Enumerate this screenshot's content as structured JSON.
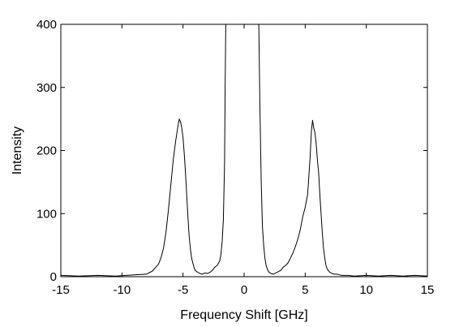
{
  "chart_data": {
    "type": "line",
    "title": "",
    "xlabel": "Frequency Shift [GHz]",
    "ylabel": "Intensity",
    "xlim": [
      -15,
      15
    ],
    "ylim": [
      0,
      400
    ],
    "xticks": [
      -15,
      -10,
      -5,
      0,
      5,
      10,
      15
    ],
    "yticks": [
      0,
      100,
      200,
      300,
      400
    ],
    "xtick_labels": [
      "-15",
      "-10",
      "-5",
      "0",
      "5",
      "10",
      "15"
    ],
    "ytick_labels": [
      "0",
      "100",
      "200",
      "300",
      "400"
    ],
    "grid": false,
    "legend": "none",
    "line_color": "#000000",
    "series": [
      {
        "x": [
          -15,
          -13.5,
          -12,
          -10.5,
          -9,
          -8,
          -7.5,
          -7,
          -6.8,
          -6.6,
          -6.4,
          -6.2,
          -6,
          -5.8,
          -5.6,
          -5.4,
          -5.3,
          -5.2,
          -5.1,
          -5,
          -4.9,
          -4.8,
          -4.7,
          -4.6,
          -4.5,
          -4.4,
          -4.3,
          -4.2,
          -4.1,
          -4,
          -3.8,
          -3.6,
          -3.4,
          -3.2,
          -3,
          -2.8,
          -2.6,
          -2.4,
          -2.2,
          -2,
          -1.9,
          -1.8,
          -1.7,
          -1.6,
          -1.55,
          -1.5,
          -1.45,
          -1.4,
          -1.3,
          -1.2,
          -1.1,
          -1,
          -0.8,
          -0.5,
          0,
          0.5,
          0.8,
          1,
          1.05,
          1.1,
          1.15,
          1.2,
          1.3,
          1.4,
          1.5,
          1.6,
          1.7,
          1.8,
          1.9,
          2,
          2.2,
          2.4,
          2.6,
          2.8,
          3,
          3.2,
          3.4,
          3.6,
          3.8,
          4,
          4.2,
          4.4,
          4.6,
          4.8,
          5,
          5.2,
          5.3,
          5.4,
          5.5,
          5.6,
          5.7,
          5.8,
          5.9,
          6,
          6.1,
          6.2,
          6.3,
          6.4,
          6.5,
          6.6,
          6.7,
          6.8,
          7,
          7.2,
          7.4,
          7.6,
          7.8,
          8,
          8.5,
          9,
          10,
          11,
          12,
          13,
          14,
          15
        ],
        "y": [
          2,
          1,
          2,
          1,
          3,
          4,
          9,
          20,
          30,
          45,
          70,
          105,
          145,
          185,
          215,
          240,
          250,
          245,
          235,
          220,
          195,
          165,
          130,
          95,
          65,
          45,
          30,
          22,
          15,
          10,
          7,
          5,
          4,
          6,
          5,
          7,
          10,
          15,
          18,
          25,
          35,
          55,
          90,
          180,
          300,
          400,
          400,
          400,
          400,
          400,
          400,
          400,
          400,
          400,
          400,
          400,
          400,
          400,
          400,
          400,
          400,
          400,
          260,
          150,
          80,
          50,
          30,
          18,
          12,
          8,
          5,
          4,
          6,
          8,
          10,
          15,
          18,
          22,
          30,
          38,
          48,
          60,
          75,
          95,
          110,
          130,
          160,
          190,
          230,
          248,
          235,
          228,
          210,
          185,
          165,
          130,
          100,
          70,
          45,
          30,
          18,
          12,
          7,
          5,
          4,
          4,
          3,
          2,
          2,
          1,
          2,
          1,
          2,
          1,
          2,
          1
        ]
      }
    ]
  }
}
